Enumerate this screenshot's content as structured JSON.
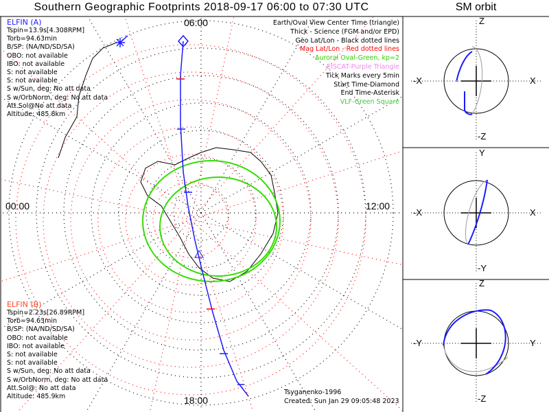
{
  "title": "Southern Geographic Footprints 2018-09-17 06:00 to 07:30 UTC",
  "sm_title": "SM orbit",
  "elfin_a": {
    "name": "ELFIN (A)",
    "color": "#1a1aff",
    "lines": [
      "Tspin=13.9s[4.308RPM]",
      "Torb=94.63min",
      "B/SP: (NA/ND/SD/SA)",
      "OBO: not available",
      "IBO: not available",
      "S: not available",
      "S: not available",
      "S w/Sun, deg: No att data",
      "S w/OrbNorm, deg: No att data",
      "Att.Sol@No att data",
      "Altitude: 485.8km"
    ]
  },
  "elfin_b": {
    "name": "ELFIN (B)",
    "color": "#ff4422",
    "lines": [
      "Tspin=2.23s[26.89RPM]",
      "Torb=94.63min",
      "B/SP: (NA/ND/SD/SA)",
      "OBO: not available",
      "IBO: not available",
      "S: not available",
      "S: not available",
      "S w/Sun, deg: No att data",
      "S w/OrbNorm, deg: No att data",
      "Att.Sol@: No att data",
      "Altitude: 485.9km"
    ]
  },
  "legend": [
    {
      "text": "Earth/Oval View Center Time (triangle)",
      "color": "#000000"
    },
    {
      "text": "Thick - Science (FGM and/or EPD)",
      "color": "#000000"
    },
    {
      "text": "Geo Lat/Lon - Black dotted lines",
      "color": "#000000"
    },
    {
      "text": "Mag Lat/Lon - Red dotted lines",
      "color": "#ff0000"
    },
    {
      "text": "Auroral Oval-Green, kp=2",
      "color": "#33cc00"
    },
    {
      "text": "EISCAT-Purple Triangle",
      "color": "#ee88ee"
    },
    {
      "text": "Tick Marks every 5min",
      "color": "#000000"
    },
    {
      "text": "Start Time-Diamond",
      "color": "#000000"
    },
    {
      "text": "End Time-Asterisk",
      "color": "#000000"
    },
    {
      "text": "VLF-Green Square",
      "color": "#33cc33"
    }
  ],
  "hours": {
    "top": "06:00",
    "left": "00:00",
    "right": "12:00",
    "bottom": "18:00"
  },
  "footer": {
    "credit": "Tsyganenko-1996",
    "created": "Created: Sun Jan 29 09:05:48 2023"
  },
  "sm_panels": [
    {
      "top": "Z",
      "bottom": "-Z",
      "left": "-X",
      "right": "X"
    },
    {
      "top": "Y",
      "bottom": "-Y",
      "left": "-X",
      "right": "X"
    },
    {
      "top": "Z",
      "bottom": "-Z",
      "left": "-Y",
      "right": "Y"
    }
  ]
}
